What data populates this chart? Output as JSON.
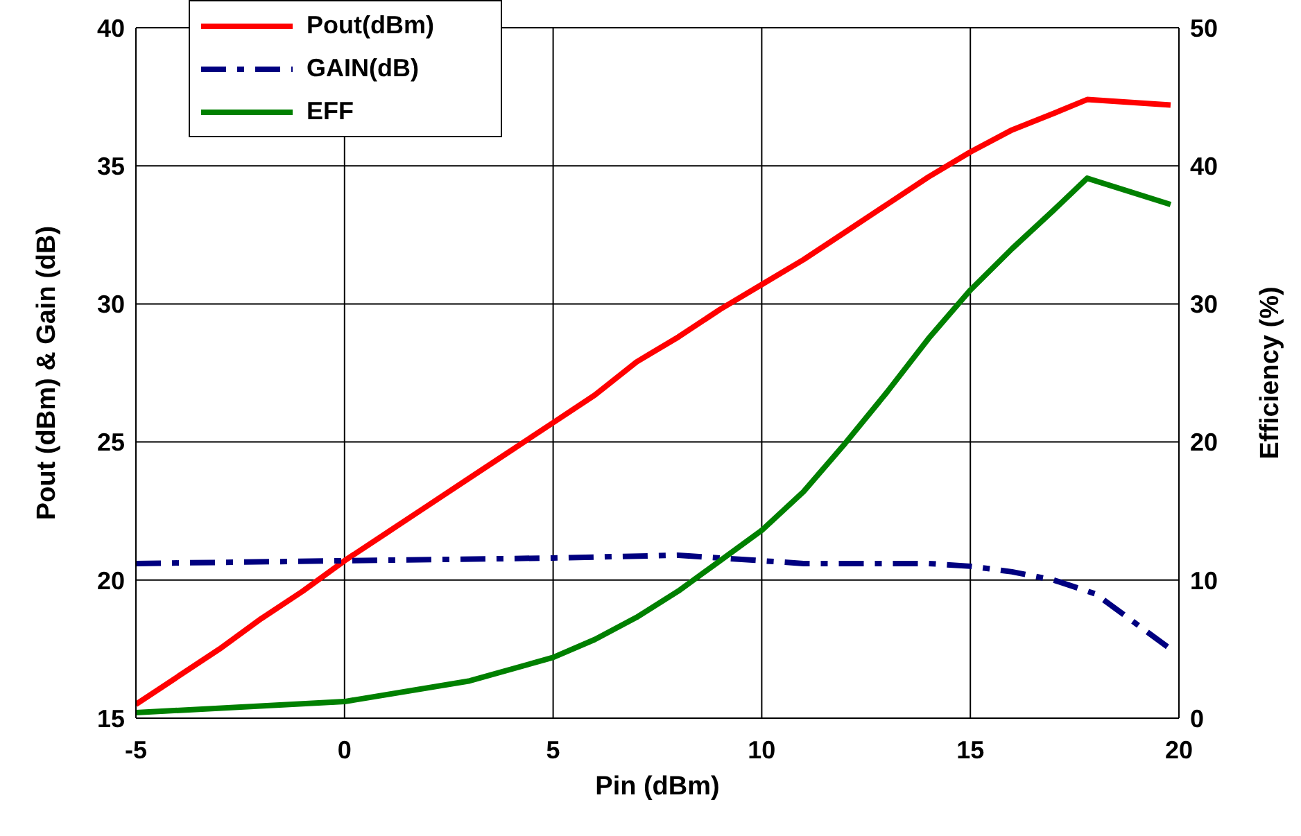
{
  "chart_data": {
    "type": "line",
    "xlabel": "Pin (dBm)",
    "ylabel": "Pout (dBm) & Gain (dB)",
    "y2label": "Efficiency (%)",
    "xlim": [
      -5,
      20
    ],
    "xticks": [
      -5,
      0,
      5,
      10,
      15,
      20
    ],
    "ylim": [
      15,
      40
    ],
    "yticks": [
      15,
      20,
      25,
      30,
      35,
      40
    ],
    "y2lim": [
      0,
      50
    ],
    "y2ticks": [
      0,
      10,
      20,
      30,
      40,
      50
    ],
    "grid": true,
    "legend": "top left",
    "marker": "none",
    "series": [
      {
        "name": "Pout(dBm)",
        "color": "#ff0000",
        "line_style": "solid",
        "x": [
          -5,
          -4,
          -3,
          -2,
          -1,
          0,
          1,
          2,
          3,
          4,
          5,
          6,
          7,
          8,
          9,
          10,
          11,
          12,
          13,
          14,
          15,
          16,
          17,
          17.8,
          19.8
        ],
        "values": [
          15.5,
          16.5,
          17.5,
          18.6,
          19.6,
          20.7,
          21.7,
          22.7,
          23.7,
          24.7,
          25.7,
          26.7,
          27.9,
          28.8,
          29.8,
          30.7,
          31.6,
          32.6,
          33.6,
          34.6,
          35.5,
          36.3,
          36.9,
          37.4,
          37.2
        ]
      },
      {
        "name": "GAIN(dB)",
        "color": "#000080",
        "line_style": "dashed",
        "x": [
          -5,
          0,
          5,
          8,
          11,
          14,
          15,
          16,
          17,
          18,
          19.8
        ],
        "values": [
          20.6,
          20.7,
          20.8,
          20.9,
          20.6,
          20.6,
          20.5,
          20.3,
          20.0,
          19.5,
          17.5
        ]
      },
      {
        "name": "EFF",
        "color": "#008000",
        "line_style": "solid",
        "axis": "y2",
        "x": [
          -5,
          0,
          3,
          5,
          6,
          7,
          8,
          9,
          10,
          11,
          12,
          13,
          14,
          15,
          16,
          17,
          17.8,
          19.8
        ],
        "values": [
          0.4,
          1.2,
          2.7,
          4.4,
          5.7,
          7.3,
          9.2,
          11.4,
          13.6,
          16.4,
          19.9,
          23.6,
          27.5,
          31.0,
          34.0,
          36.8,
          39.1,
          37.2
        ]
      }
    ]
  }
}
